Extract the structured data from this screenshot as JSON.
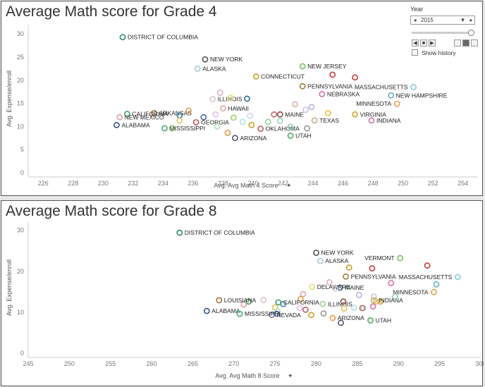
{
  "dashboard": {
    "year_control": {
      "label": "Year",
      "selected": "2015",
      "show_history_label": "Show history",
      "prev_glyph": "◀",
      "next_glyph": "▶",
      "dropdown_glyph": "▼",
      "play_glyph": "■"
    }
  },
  "chart_data": [
    {
      "type": "scatter",
      "title": "Average Math score for Grade 4",
      "xlabel": "Avg. Avg Math 4 Score",
      "ylabel": "Avg. Expense/enroll",
      "xlim": [
        225,
        255
      ],
      "ylim": [
        0,
        32
      ],
      "xticks": [
        226,
        228,
        230,
        232,
        234,
        236,
        238,
        240,
        242,
        244,
        246,
        248,
        250,
        252,
        254
      ],
      "yticks": [
        0,
        5,
        10,
        15,
        20,
        25,
        30
      ],
      "grid": false,
      "points": [
        {
          "label": "DISTRICT OF COLUMBIA",
          "x": 231.3,
          "y": 29.3,
          "color": "#2e8b72"
        },
        {
          "label": "NEW YORK",
          "x": 236.8,
          "y": 24.5,
          "color": "#555555"
        },
        {
          "label": "ALASKA",
          "x": 236.3,
          "y": 22.5,
          "color": "#a8c8d8"
        },
        {
          "label": "CONNECTICUT",
          "x": 240.2,
          "y": 20.8,
          "color": "#c9a227"
        },
        {
          "label": "NEW JERSEY",
          "x": 243.3,
          "y": 23.0,
          "color": "#7cc05a"
        },
        {
          "label": "",
          "x": 245.3,
          "y": 21.2,
          "color": "#c83a3a"
        },
        {
          "label": "",
          "x": 246.8,
          "y": 20.6,
          "color": "#c83a3a"
        },
        {
          "label": "PENNSYLVANIA",
          "x": 243.3,
          "y": 18.7,
          "color": "#a07a3a"
        },
        {
          "label": "MASSACHUSETTS",
          "x": 250.7,
          "y": 18.5,
          "color": "#8fc8e0"
        },
        {
          "label": "NEW HAMPSHIRE",
          "x": 249.2,
          "y": 16.7,
          "color": "#6aaac8"
        },
        {
          "label": "NEBRASKA",
          "x": 244.6,
          "y": 17.0,
          "color": "#d870a8"
        },
        {
          "label": "MINNESOTA",
          "x": 249.6,
          "y": 14.9,
          "color": "#e8a050"
        },
        {
          "label": "VIRGINIA",
          "x": 246.8,
          "y": 12.6,
          "color": "#c9a227"
        },
        {
          "label": "INDIANA",
          "x": 247.9,
          "y": 11.3,
          "color": "#d870a8"
        },
        {
          "label": "ILLINOIS",
          "x": 237.3,
          "y": 15.9,
          "color": "#e0c0d0"
        },
        {
          "label": "HAWAII",
          "x": 238.0,
          "y": 13.9,
          "color": "#e8a0a0"
        },
        {
          "label": "",
          "x": 237.8,
          "y": 17.3,
          "color": "#e0b0c8"
        },
        {
          "label": "",
          "x": 238.5,
          "y": 16.2,
          "color": "#e0e070"
        },
        {
          "label": "",
          "x": 239.6,
          "y": 16.0,
          "color": "#336699"
        },
        {
          "label": "MAINE",
          "x": 241.8,
          "y": 12.6,
          "color": "#8b4a4a"
        },
        {
          "label": "",
          "x": 241.4,
          "y": 12.6,
          "color": "#c26a6a"
        },
        {
          "label": "",
          "x": 242.8,
          "y": 14.8,
          "color": "#d8b0b0"
        },
        {
          "label": "",
          "x": 243.5,
          "y": 13.6,
          "color": "#d0c0e0"
        },
        {
          "label": "",
          "x": 243.9,
          "y": 14.2,
          "color": "#b0b0e0"
        },
        {
          "label": "TEXAS",
          "x": 244.1,
          "y": 11.3,
          "color": "#c8b080"
        },
        {
          "label": "",
          "x": 245.0,
          "y": 12.9,
          "color": "#e8c040"
        },
        {
          "label": "",
          "x": 241.0,
          "y": 11.0,
          "color": "#a0d0a0"
        },
        {
          "label": "",
          "x": 241.8,
          "y": 11.2,
          "color": "#a0d0c0"
        },
        {
          "label": "OKLAHOMA",
          "x": 240.5,
          "y": 9.5,
          "color": "#c06060"
        },
        {
          "label": "",
          "x": 239.9,
          "y": 10.3,
          "color": "#d0a020"
        },
        {
          "label": "",
          "x": 238.7,
          "y": 11.9,
          "color": "#a0d070"
        },
        {
          "label": "",
          "x": 239.8,
          "y": 12.3,
          "color": "#d0d0e0"
        },
        {
          "label": "",
          "x": 239.3,
          "y": 11.0,
          "color": "#b0e0e0"
        },
        {
          "label": "",
          "x": 242.5,
          "y": 9.9,
          "color": "#8ad0c0"
        },
        {
          "label": "UTAH",
          "x": 242.5,
          "y": 8.0,
          "color": "#55aa55"
        },
        {
          "label": "",
          "x": 243.6,
          "y": 9.6,
          "color": "#999999"
        },
        {
          "label": "ARIZONA",
          "x": 238.8,
          "y": 7.5,
          "color": "#555577"
        },
        {
          "label": "GEORGIA",
          "x": 236.2,
          "y": 10.9,
          "color": "#c85050"
        },
        {
          "label": "",
          "x": 236.7,
          "y": 12.0,
          "color": "#4a6aa0"
        },
        {
          "label": "",
          "x": 237.5,
          "y": 12.6,
          "color": "#e0c0e0"
        },
        {
          "label": "",
          "x": 237.6,
          "y": 10.0,
          "color": "#a8e0b8"
        },
        {
          "label": "",
          "x": 238.3,
          "y": 8.6,
          "color": "#e89a50"
        },
        {
          "label": "ARKANSAS",
          "x": 233.4,
          "y": 12.9,
          "color": "#a07040"
        },
        {
          "label": "",
          "x": 235.1,
          "y": 12.4,
          "color": "#4080a0"
        },
        {
          "label": "",
          "x": 235.7,
          "y": 13.4,
          "color": "#e0a050"
        },
        {
          "label": "",
          "x": 235.1,
          "y": 11.3,
          "color": "#e0c060"
        },
        {
          "label": "MISSISSIPPI",
          "x": 234.1,
          "y": 9.6,
          "color": "#40b070"
        },
        {
          "label": "",
          "x": 234.6,
          "y": 9.6,
          "color": "#7ab060"
        },
        {
          "label": "CALIFORNIA",
          "x": 231.6,
          "y": 12.7,
          "color": "#40a060"
        },
        {
          "label": "NEW MEXICO",
          "x": 231.1,
          "y": 12.0,
          "color": "#e0a0a0"
        },
        {
          "label": "ALABAMA",
          "x": 230.9,
          "y": 10.3,
          "color": "#335588"
        }
      ]
    },
    {
      "type": "scatter",
      "title": "Average Math score for Grade 8",
      "xlabel": "Avg. Avg Math 8 Score",
      "ylabel": "Avg. Expense/enroll",
      "xlim": [
        245,
        300
      ],
      "ylim": [
        0,
        32
      ],
      "xticks": [
        245,
        250,
        255,
        260,
        265,
        270,
        275,
        280,
        285,
        290,
        295,
        300
      ],
      "yticks": [
        0,
        10,
        20,
        30
      ],
      "grid": false,
      "points": [
        {
          "label": "DISTRICT OF COLUMBIA",
          "x": 263.4,
          "y": 29.4,
          "color": "#2e8b72"
        },
        {
          "label": "NEW YORK",
          "x": 280.0,
          "y": 24.5,
          "color": "#555555"
        },
        {
          "label": "ALASKA",
          "x": 280.5,
          "y": 22.5,
          "color": "#a8c8d8"
        },
        {
          "label": "VERMONT",
          "x": 290.2,
          "y": 23.2,
          "color": "#7cc05a"
        },
        {
          "label": "",
          "x": 293.5,
          "y": 21.4,
          "color": "#c83a3a"
        },
        {
          "label": "",
          "x": 286.8,
          "y": 20.7,
          "color": "#c83a3a"
        },
        {
          "label": "",
          "x": 284.0,
          "y": 20.9,
          "color": "#c9a227"
        },
        {
          "label": "PENNSYLVANIA",
          "x": 283.6,
          "y": 18.7,
          "color": "#a07a3a"
        },
        {
          "label": "MASSACHUSETTS",
          "x": 297.2,
          "y": 18.6,
          "color": "#8fc8e0"
        },
        {
          "label": "",
          "x": 294.6,
          "y": 16.8,
          "color": "#6aaac8"
        },
        {
          "label": "MINNESOTA",
          "x": 294.3,
          "y": 14.9,
          "color": "#e8a050"
        },
        {
          "label": "",
          "x": 289.1,
          "y": 17.1,
          "color": "#d870a8"
        },
        {
          "label": "MAINE",
          "x": 282.9,
          "y": 16.0,
          "color": "#336699"
        },
        {
          "label": "DELAWARE",
          "x": 279.5,
          "y": 16.2,
          "color": "#e0e070"
        },
        {
          "label": "",
          "x": 281.6,
          "y": 17.3,
          "color": "#e0b0c8"
        },
        {
          "label": "",
          "x": 282.3,
          "y": 15.8,
          "color": "#e0c0d0"
        },
        {
          "label": "ILLINOIS",
          "x": 280.8,
          "y": 12.0,
          "color": "#a0d0a0"
        },
        {
          "label": "",
          "x": 283.3,
          "y": 12.6,
          "color": "#8b4a4a"
        },
        {
          "label": "",
          "x": 285.2,
          "y": 14.2,
          "color": "#b0b0e0"
        },
        {
          "label": "",
          "x": 287.0,
          "y": 13.8,
          "color": "#d0c0e0"
        },
        {
          "label": "",
          "x": 287.8,
          "y": 12.6,
          "color": "#c9a227"
        },
        {
          "label": "",
          "x": 287.3,
          "y": 12.6,
          "color": "#e8c040"
        },
        {
          "label": "",
          "x": 286.9,
          "y": 11.4,
          "color": "#d870a8"
        },
        {
          "label": "INDIANA",
          "x": 287.0,
          "y": 12.9,
          "color": "#c8b080"
        },
        {
          "label": "",
          "x": 285.7,
          "y": 11.0,
          "color": "#a0d0c0"
        },
        {
          "label": "",
          "x": 284.6,
          "y": 11.1,
          "color": "#b0e0e0"
        },
        {
          "label": "",
          "x": 289.6,
          "y": 13.8,
          "color": "#8ad0c0"
        },
        {
          "label": "",
          "x": 283.4,
          "y": 10.9,
          "color": "#e0c060"
        },
        {
          "label": "",
          "x": 278.4,
          "y": 14.4,
          "color": "#e8a0a0"
        },
        {
          "label": "",
          "x": 278.1,
          "y": 13.2,
          "color": "#e0a050"
        },
        {
          "label": "",
          "x": 278.0,
          "y": 11.0,
          "color": "#e0c0e0"
        },
        {
          "label": "",
          "x": 278.7,
          "y": 10.6,
          "color": "#c06060"
        },
        {
          "label": "",
          "x": 280.9,
          "y": 9.7,
          "color": "#999999"
        },
        {
          "label": "",
          "x": 279.4,
          "y": 9.3,
          "color": "#d0a020"
        },
        {
          "label": "ARIZONA",
          "x": 282.0,
          "y": 8.6,
          "color": "#e89a50"
        },
        {
          "label": "",
          "x": 283.0,
          "y": 7.4,
          "color": "#555577"
        },
        {
          "label": "UTAH",
          "x": 286.6,
          "y": 8.0,
          "color": "#55aa55"
        },
        {
          "label": "",
          "x": 285.6,
          "y": 11.0,
          "color": "#c26a6a"
        },
        {
          "label": "CALIFORNIA",
          "x": 275.4,
          "y": 12.4,
          "color": "#40a060"
        },
        {
          "label": "",
          "x": 276.0,
          "y": 12.0,
          "color": "#4080a0"
        },
        {
          "label": "",
          "x": 275.0,
          "y": 11.2,
          "color": "#e0c060"
        },
        {
          "label": "",
          "x": 275.3,
          "y": 10.2,
          "color": "#a8e0b8"
        },
        {
          "label": "NEVADA",
          "x": 274.6,
          "y": 9.3,
          "color": "#8080c0"
        },
        {
          "label": "",
          "x": 275.2,
          "y": 9.6,
          "color": "#4a6aa0"
        },
        {
          "label": "",
          "x": 273.6,
          "y": 13.0,
          "color": "#e0c0d0"
        },
        {
          "label": "",
          "x": 271.8,
          "y": 12.6,
          "color": "#40a060"
        },
        {
          "label": "",
          "x": 271.2,
          "y": 11.9,
          "color": "#e0a0a0"
        },
        {
          "label": "LOUISIANA",
          "x": 268.2,
          "y": 12.9,
          "color": "#a07040"
        },
        {
          "label": "ALABAMA",
          "x": 266.7,
          "y": 10.3,
          "color": "#335588"
        },
        {
          "label": "MISSISSIPPI",
          "x": 270.7,
          "y": 9.6,
          "color": "#40b070"
        }
      ]
    }
  ]
}
